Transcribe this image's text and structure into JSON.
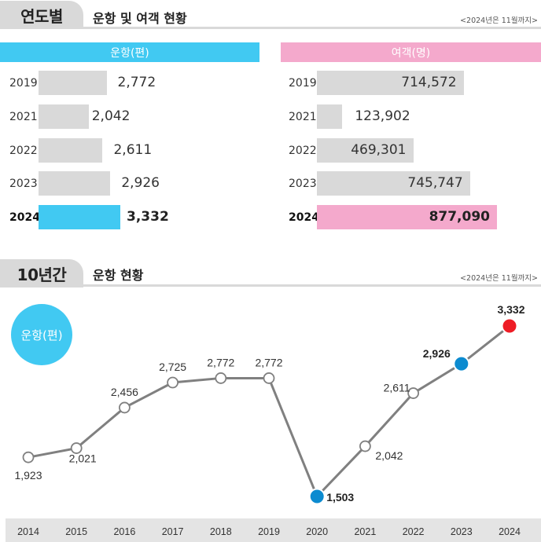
{
  "section1": {
    "tab": "연도별",
    "title": "운항 및 여객 현황",
    "note": "<2024년은 11월까지>"
  },
  "flights_panel": {
    "header": "운항(편)",
    "color": "#41c9f2",
    "rows": [
      {
        "year": "2019",
        "value": 2772,
        "label": "2,772"
      },
      {
        "year": "2021",
        "value": 2042,
        "label": "2,042"
      },
      {
        "year": "2022",
        "value": 2611,
        "label": "2,611"
      },
      {
        "year": "2023",
        "value": 2926,
        "label": "2,926"
      },
      {
        "year": "2024",
        "value": 3332,
        "label": "3,332",
        "highlight": true
      }
    ]
  },
  "passengers_panel": {
    "header": "여객(명)",
    "color": "#f4a9cc",
    "rows": [
      {
        "year": "2019",
        "value": 714572,
        "label": "714,572"
      },
      {
        "year": "2021",
        "value": 123902,
        "label": "123,902"
      },
      {
        "year": "2022",
        "value": 469301,
        "label": "469,301"
      },
      {
        "year": "2023",
        "value": 745747,
        "label": "745,747"
      },
      {
        "year": "2024",
        "value": 877090,
        "label": "877,090",
        "highlight": true
      }
    ]
  },
  "section2": {
    "tab": "10년간",
    "title": "운항 현황",
    "note": "<2024년은 11월까지>"
  },
  "chart_data": {
    "type": "line",
    "series": [
      {
        "name": "운항(편)",
        "x": [
          "2014",
          "2015",
          "2016",
          "2017",
          "2018",
          "2019",
          "2020",
          "2021",
          "2022",
          "2023",
          "2024"
        ],
        "values": [
          1923,
          2021,
          2456,
          2725,
          2772,
          2772,
          1503,
          2042,
          2611,
          2926,
          3332
        ],
        "labels": [
          "1,923",
          "2,021",
          "2,456",
          "2,725",
          "2,772",
          "2,772",
          "1,503",
          "2,042",
          "2,611",
          "2,926",
          "3,332"
        ]
      }
    ],
    "highlights": {
      "2020": "#0c8bd0",
      "2023": "#0c8bd0",
      "2024": "#ee1c25"
    },
    "line_color": "#808080",
    "grid": false
  }
}
